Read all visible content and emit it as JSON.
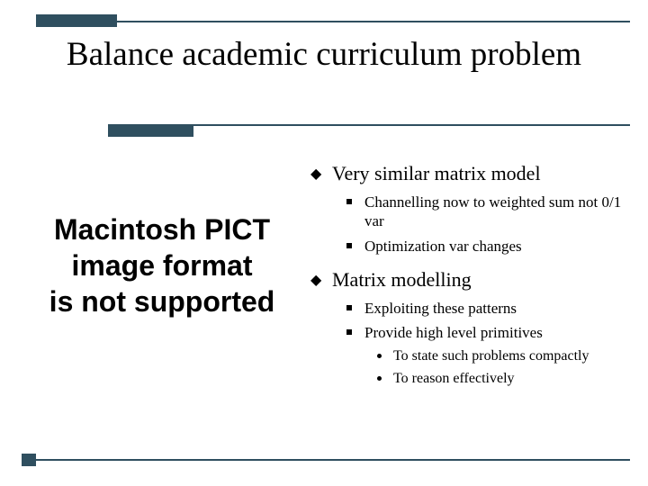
{
  "colors": {
    "accent": "#2f4f5f",
    "background": "#ffffff",
    "text": "#000000"
  },
  "title": "Balance academic curriculum problem",
  "placeholder": {
    "line1": "Macintosh PICT",
    "line2": "image format",
    "line3": "is not supported"
  },
  "bullets": {
    "b1": "Very similar matrix model",
    "b1_1": "Channelling now to weighted sum not 0/1 var",
    "b1_2": "Optimization var changes",
    "b2": "Matrix modelling",
    "b2_1": "Exploiting these patterns",
    "b2_2": "Provide high level primitives",
    "b2_2_1": "To state such problems compactly",
    "b2_2_2": "To reason effectively"
  }
}
